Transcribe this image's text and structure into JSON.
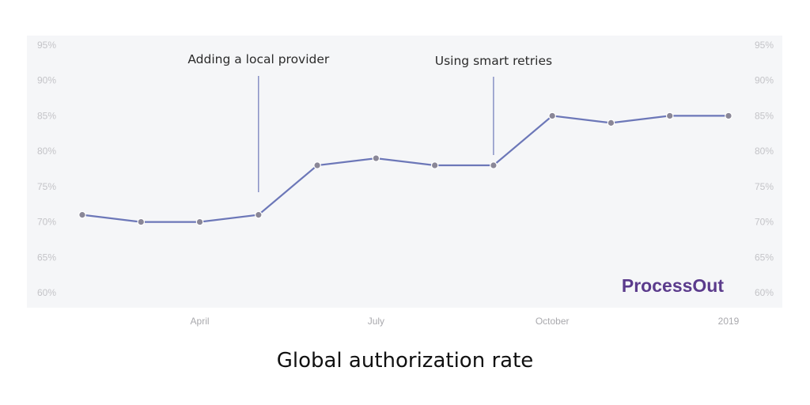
{
  "caption": "Global authorization rate",
  "brand": {
    "name": "ProcessOut",
    "color": "#5b3b8c"
  },
  "colors": {
    "plot_background": "#f5f6f8",
    "line": "#6c77b8",
    "marker": "#8a8797",
    "annotation_line": "#6c77b8",
    "tick_text": "#c4c4c8"
  },
  "chart_data": {
    "type": "line",
    "title": "",
    "xlabel": "",
    "ylabel": "",
    "ylim": [
      60,
      95
    ],
    "yticks": [
      "60%",
      "65%",
      "70%",
      "75%",
      "80%",
      "85%",
      "90%",
      "95%"
    ],
    "y_axis_sides": [
      "left",
      "right"
    ],
    "grid": false,
    "legend": "none",
    "x": [
      "2018-02",
      "2018-03",
      "2018-04",
      "2018-05",
      "2018-06",
      "2018-07",
      "2018-08",
      "2018-09",
      "2018-10",
      "2018-11",
      "2018-12",
      "2019-01"
    ],
    "x_tick_labels": [
      {
        "x": "2018-04",
        "label": "April"
      },
      {
        "x": "2018-07",
        "label": "July"
      },
      {
        "x": "2018-10",
        "label": "October"
      },
      {
        "x": "2019-01",
        "label": "2019"
      }
    ],
    "series": [
      {
        "values": [
          71,
          70,
          70,
          71,
          78,
          79,
          78,
          78,
          85,
          84,
          85,
          85
        ]
      }
    ],
    "annotations": [
      {
        "text": "Adding a local provider",
        "x": "2018-05"
      },
      {
        "text": "Using smart retries",
        "x": "2018-09"
      }
    ]
  }
}
